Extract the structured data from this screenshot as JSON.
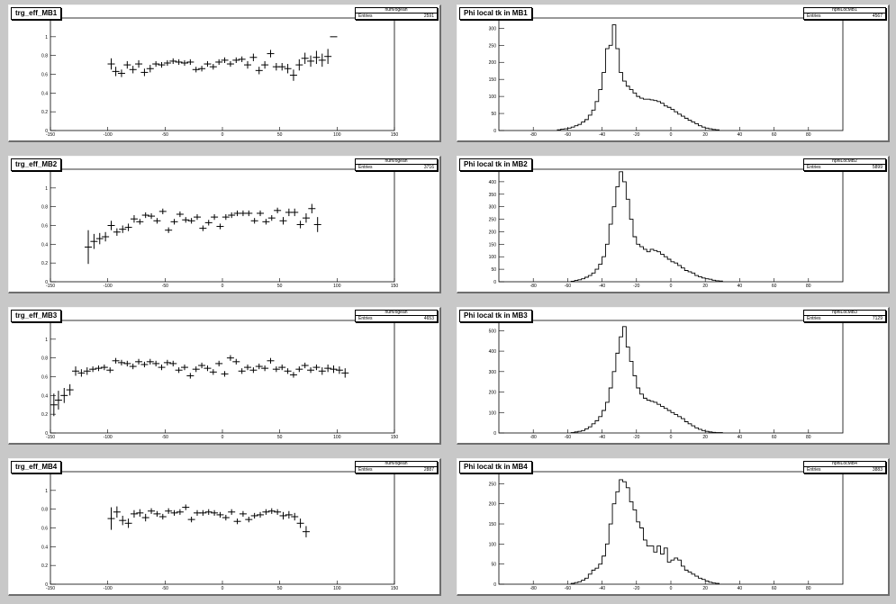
{
  "chart_data": [
    {
      "type": "scatter",
      "title": "trg_eff_MB1",
      "stats": {
        "name": "num/ogeah",
        "label": "Entries",
        "value": "2591"
      },
      "xlim": [
        -150,
        150
      ],
      "ylim": [
        0,
        1.2
      ],
      "xticks": [
        -150,
        -100,
        -50,
        0,
        50,
        100,
        150
      ],
      "yticks": [
        0,
        0.2,
        0.4,
        0.6,
        0.8,
        1
      ],
      "points": [
        [
          -97,
          0.71,
          0.06
        ],
        [
          -93,
          0.63,
          0.05
        ],
        [
          -88,
          0.61,
          0.04
        ],
        [
          -83,
          0.7,
          0.04
        ],
        [
          -78,
          0.65,
          0.04
        ],
        [
          -73,
          0.71,
          0.04
        ],
        [
          -68,
          0.62,
          0.04
        ],
        [
          -63,
          0.66,
          0.04
        ],
        [
          -58,
          0.71,
          0.03
        ],
        [
          -53,
          0.7,
          0.03
        ],
        [
          -48,
          0.72,
          0.03
        ],
        [
          -43,
          0.74,
          0.03
        ],
        [
          -38,
          0.73,
          0.03
        ],
        [
          -33,
          0.72,
          0.03
        ],
        [
          -28,
          0.73,
          0.03
        ],
        [
          -23,
          0.65,
          0.03
        ],
        [
          -18,
          0.66,
          0.03
        ],
        [
          -13,
          0.71,
          0.03
        ],
        [
          -8,
          0.68,
          0.03
        ],
        [
          -3,
          0.73,
          0.03
        ],
        [
          2,
          0.75,
          0.03
        ],
        [
          7,
          0.71,
          0.03
        ],
        [
          12,
          0.75,
          0.03
        ],
        [
          17,
          0.76,
          0.03
        ],
        [
          22,
          0.7,
          0.04
        ],
        [
          27,
          0.78,
          0.04
        ],
        [
          32,
          0.64,
          0.04
        ],
        [
          37,
          0.7,
          0.04
        ],
        [
          42,
          0.82,
          0.04
        ],
        [
          47,
          0.68,
          0.04
        ],
        [
          52,
          0.68,
          0.04
        ],
        [
          57,
          0.66,
          0.05
        ],
        [
          62,
          0.59,
          0.06
        ],
        [
          67,
          0.7,
          0.06
        ],
        [
          72,
          0.77,
          0.06
        ],
        [
          77,
          0.74,
          0.06
        ],
        [
          82,
          0.78,
          0.07
        ],
        [
          87,
          0.75,
          0.07
        ],
        [
          92,
          0.79,
          0.08
        ],
        [
          97,
          1.0,
          0
        ]
      ]
    },
    {
      "type": "bar",
      "title": "Phi local tk in MB1",
      "stats": {
        "name": "hphiLocMB1",
        "label": "Entries",
        "value": "4567"
      },
      "xlim": [
        -100,
        100
      ],
      "ylim": [
        0,
        330
      ],
      "xticks": [
        -80,
        -60,
        -40,
        -20,
        0,
        20,
        40,
        60,
        80
      ],
      "yticks": [
        0,
        50,
        100,
        150,
        200,
        250,
        300
      ],
      "start": -66,
      "width": 2,
      "counts": [
        2,
        4,
        5,
        7,
        10,
        14,
        18,
        25,
        32,
        45,
        60,
        85,
        120,
        170,
        240,
        250,
        310,
        240,
        170,
        145,
        130,
        120,
        110,
        100,
        95,
        92,
        92,
        90,
        88,
        85,
        80,
        72,
        68,
        62,
        55,
        48,
        42,
        36,
        30,
        25,
        20,
        14,
        10,
        7,
        5,
        3,
        2
      ]
    },
    {
      "type": "scatter",
      "title": "trg_eff_MB2",
      "stats": {
        "name": "num/ogeah",
        "label": "Entries",
        "value": "3716"
      },
      "xlim": [
        -150,
        150
      ],
      "ylim": [
        0,
        1.2
      ],
      "xticks": [
        -150,
        -100,
        -50,
        0,
        50,
        100,
        150
      ],
      "yticks": [
        0,
        0.2,
        0.4,
        0.6,
        0.8,
        1
      ],
      "points": [
        [
          -117,
          0.37,
          0.18
        ],
        [
          -112,
          0.43,
          0.08
        ],
        [
          -107,
          0.46,
          0.06
        ],
        [
          -102,
          0.48,
          0.05
        ],
        [
          -97,
          0.6,
          0.05
        ],
        [
          -92,
          0.53,
          0.04
        ],
        [
          -87,
          0.56,
          0.04
        ],
        [
          -82,
          0.58,
          0.04
        ],
        [
          -77,
          0.67,
          0.04
        ],
        [
          -72,
          0.64,
          0.03
        ],
        [
          -67,
          0.71,
          0.03
        ],
        [
          -62,
          0.7,
          0.03
        ],
        [
          -57,
          0.65,
          0.03
        ],
        [
          -52,
          0.75,
          0.03
        ],
        [
          -47,
          0.55,
          0.03
        ],
        [
          -42,
          0.64,
          0.03
        ],
        [
          -37,
          0.72,
          0.03
        ],
        [
          -32,
          0.66,
          0.03
        ],
        [
          -27,
          0.65,
          0.03
        ],
        [
          -22,
          0.69,
          0.03
        ],
        [
          -17,
          0.57,
          0.03
        ],
        [
          -12,
          0.63,
          0.03
        ],
        [
          -7,
          0.69,
          0.03
        ],
        [
          -2,
          0.59,
          0.03
        ],
        [
          3,
          0.69,
          0.03
        ],
        [
          8,
          0.71,
          0.03
        ],
        [
          13,
          0.73,
          0.03
        ],
        [
          18,
          0.73,
          0.03
        ],
        [
          23,
          0.73,
          0.03
        ],
        [
          28,
          0.65,
          0.03
        ],
        [
          33,
          0.73,
          0.03
        ],
        [
          38,
          0.64,
          0.03
        ],
        [
          43,
          0.68,
          0.03
        ],
        [
          48,
          0.76,
          0.03
        ],
        [
          53,
          0.65,
          0.04
        ],
        [
          58,
          0.74,
          0.04
        ],
        [
          63,
          0.74,
          0.04
        ],
        [
          68,
          0.61,
          0.04
        ],
        [
          73,
          0.68,
          0.05
        ],
        [
          78,
          0.78,
          0.05
        ],
        [
          83,
          0.61,
          0.08
        ]
      ]
    },
    {
      "type": "bar",
      "title": "Phi local tk in MB2",
      "stats": {
        "name": "hphiLocMB2",
        "label": "Entries",
        "value": "5899"
      },
      "xlim": [
        -100,
        100
      ],
      "ylim": [
        0,
        450
      ],
      "xticks": [
        -80,
        -60,
        -40,
        -20,
        0,
        20,
        40,
        60,
        80
      ],
      "yticks": [
        0,
        50,
        100,
        150,
        200,
        250,
        300,
        350,
        400,
        450
      ],
      "start": -58,
      "width": 2,
      "counts": [
        2,
        5,
        8,
        12,
        18,
        25,
        35,
        50,
        70,
        100,
        150,
        230,
        300,
        380,
        440,
        400,
        330,
        250,
        180,
        150,
        140,
        130,
        120,
        130,
        125,
        120,
        110,
        100,
        90,
        80,
        75,
        65,
        55,
        45,
        40,
        35,
        25,
        20,
        15,
        12,
        10,
        6,
        4,
        3
      ]
    },
    {
      "type": "scatter",
      "title": "trg_eff_MB3",
      "stats": {
        "name": "num/ogeah",
        "label": "Entries",
        "value": "4653"
      },
      "xlim": [
        -150,
        150
      ],
      "ylim": [
        0,
        1.2
      ],
      "xticks": [
        -150,
        -100,
        -50,
        0,
        50,
        100,
        150
      ],
      "yticks": [
        0,
        0.2,
        0.4,
        0.6,
        0.8,
        1
      ],
      "points": [
        [
          -147,
          0.3,
          0.12
        ],
        [
          -143,
          0.35,
          0.1
        ],
        [
          -138,
          0.4,
          0.08
        ],
        [
          -133,
          0.46,
          0.06
        ],
        [
          -128,
          0.66,
          0.05
        ],
        [
          -123,
          0.64,
          0.04
        ],
        [
          -118,
          0.66,
          0.04
        ],
        [
          -113,
          0.68,
          0.03
        ],
        [
          -108,
          0.69,
          0.03
        ],
        [
          -103,
          0.7,
          0.03
        ],
        [
          -98,
          0.67,
          0.03
        ],
        [
          -93,
          0.77,
          0.03
        ],
        [
          -88,
          0.75,
          0.03
        ],
        [
          -83,
          0.74,
          0.03
        ],
        [
          -78,
          0.71,
          0.03
        ],
        [
          -73,
          0.76,
          0.03
        ],
        [
          -68,
          0.73,
          0.03
        ],
        [
          -63,
          0.76,
          0.03
        ],
        [
          -58,
          0.74,
          0.03
        ],
        [
          -53,
          0.7,
          0.03
        ],
        [
          -48,
          0.75,
          0.03
        ],
        [
          -43,
          0.74,
          0.03
        ],
        [
          -38,
          0.67,
          0.03
        ],
        [
          -33,
          0.7,
          0.03
        ],
        [
          -28,
          0.61,
          0.03
        ],
        [
          -23,
          0.68,
          0.03
        ],
        [
          -18,
          0.72,
          0.03
        ],
        [
          -13,
          0.69,
          0.03
        ],
        [
          -8,
          0.65,
          0.03
        ],
        [
          -3,
          0.74,
          0.03
        ],
        [
          2,
          0.63,
          0.03
        ],
        [
          7,
          0.8,
          0.03
        ],
        [
          12,
          0.76,
          0.03
        ],
        [
          17,
          0.66,
          0.03
        ],
        [
          22,
          0.7,
          0.03
        ],
        [
          27,
          0.67,
          0.03
        ],
        [
          32,
          0.71,
          0.03
        ],
        [
          37,
          0.69,
          0.03
        ],
        [
          42,
          0.77,
          0.03
        ],
        [
          47,
          0.68,
          0.03
        ],
        [
          52,
          0.7,
          0.03
        ],
        [
          57,
          0.66,
          0.03
        ],
        [
          62,
          0.62,
          0.03
        ],
        [
          67,
          0.68,
          0.03
        ],
        [
          72,
          0.72,
          0.03
        ],
        [
          77,
          0.67,
          0.03
        ],
        [
          82,
          0.7,
          0.03
        ],
        [
          87,
          0.66,
          0.04
        ],
        [
          92,
          0.69,
          0.04
        ],
        [
          97,
          0.68,
          0.04
        ],
        [
          102,
          0.67,
          0.04
        ],
        [
          107,
          0.64,
          0.05
        ]
      ]
    },
    {
      "type": "bar",
      "title": "Phi local tk in MB3",
      "stats": {
        "name": "hphiLocMB3",
        "label": "Entries",
        "value": "7129"
      },
      "xlim": [
        -100,
        100
      ],
      "ylim": [
        0,
        550
      ],
      "xticks": [
        -80,
        -60,
        -40,
        -20,
        0,
        20,
        40,
        60,
        80
      ],
      "yticks": [
        0,
        100,
        200,
        300,
        400,
        500
      ],
      "start": -58,
      "width": 2,
      "counts": [
        2,
        5,
        8,
        12,
        20,
        30,
        45,
        60,
        80,
        110,
        150,
        220,
        300,
        390,
        470,
        520,
        420,
        350,
        280,
        220,
        190,
        170,
        160,
        155,
        150,
        140,
        130,
        120,
        110,
        100,
        90,
        80,
        70,
        55,
        45,
        35,
        25,
        18,
        12,
        8,
        5,
        3,
        2,
        2
      ]
    },
    {
      "type": "scatter",
      "title": "trg_eff_MB4",
      "stats": {
        "name": "num/ogeah",
        "label": "Entries",
        "value": "2887"
      },
      "xlim": [
        -150,
        150
      ],
      "ylim": [
        0,
        1.2
      ],
      "xticks": [
        -150,
        -100,
        -50,
        0,
        50,
        100,
        150
      ],
      "yticks": [
        0,
        0.2,
        0.4,
        0.6,
        0.8,
        1
      ],
      "points": [
        [
          -97,
          0.7,
          0.12
        ],
        [
          -92,
          0.77,
          0.06
        ],
        [
          -87,
          0.68,
          0.05
        ],
        [
          -82,
          0.65,
          0.05
        ],
        [
          -77,
          0.75,
          0.04
        ],
        [
          -72,
          0.76,
          0.04
        ],
        [
          -67,
          0.71,
          0.04
        ],
        [
          -62,
          0.78,
          0.03
        ],
        [
          -57,
          0.75,
          0.03
        ],
        [
          -52,
          0.72,
          0.03
        ],
        [
          -47,
          0.78,
          0.03
        ],
        [
          -42,
          0.76,
          0.03
        ],
        [
          -37,
          0.77,
          0.03
        ],
        [
          -32,
          0.82,
          0.03
        ],
        [
          -27,
          0.69,
          0.03
        ],
        [
          -22,
          0.76,
          0.03
        ],
        [
          -17,
          0.76,
          0.03
        ],
        [
          -12,
          0.77,
          0.03
        ],
        [
          -7,
          0.76,
          0.03
        ],
        [
          -2,
          0.74,
          0.03
        ],
        [
          3,
          0.71,
          0.03
        ],
        [
          8,
          0.77,
          0.03
        ],
        [
          13,
          0.67,
          0.03
        ],
        [
          18,
          0.75,
          0.03
        ],
        [
          23,
          0.69,
          0.03
        ],
        [
          28,
          0.73,
          0.03
        ],
        [
          33,
          0.74,
          0.03
        ],
        [
          38,
          0.77,
          0.03
        ],
        [
          43,
          0.78,
          0.03
        ],
        [
          48,
          0.77,
          0.03
        ],
        [
          53,
          0.73,
          0.04
        ],
        [
          58,
          0.74,
          0.04
        ],
        [
          63,
          0.72,
          0.04
        ],
        [
          68,
          0.65,
          0.05
        ],
        [
          73,
          0.56,
          0.06
        ]
      ]
    },
    {
      "type": "bar",
      "title": "Phi local tk in MB4",
      "stats": {
        "name": "hphiLocMB4",
        "label": "Entries",
        "value": "3883"
      },
      "xlim": [
        -100,
        100
      ],
      "ylim": [
        0,
        280
      ],
      "xticks": [
        -80,
        -60,
        -40,
        -20,
        0,
        20,
        40,
        60,
        80
      ],
      "yticks": [
        0,
        50,
        100,
        150,
        200,
        250
      ],
      "start": -58,
      "width": 2,
      "counts": [
        2,
        4,
        6,
        10,
        15,
        25,
        35,
        40,
        50,
        70,
        100,
        150,
        200,
        230,
        260,
        255,
        240,
        205,
        185,
        155,
        140,
        110,
        95,
        95,
        80,
        95,
        75,
        90,
        55,
        60,
        65,
        60,
        45,
        35,
        30,
        25,
        20,
        15,
        12,
        8,
        5,
        3,
        2
      ]
    }
  ]
}
